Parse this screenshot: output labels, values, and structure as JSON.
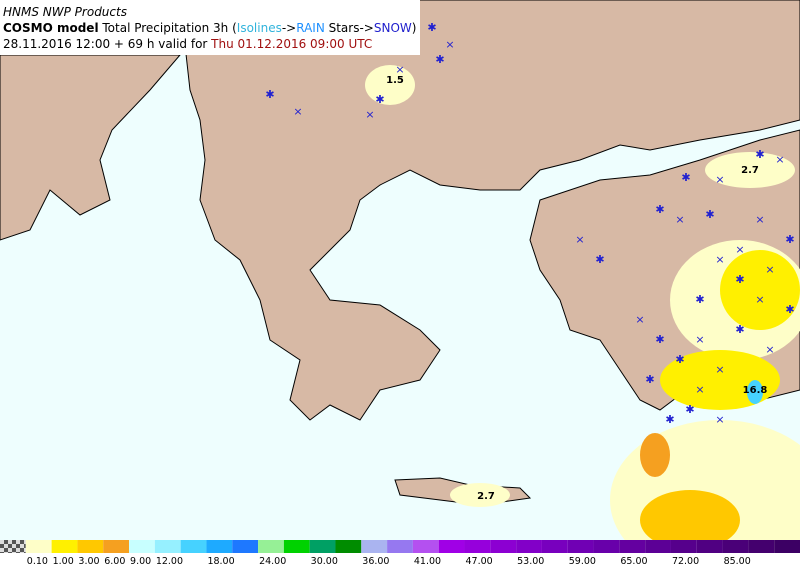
{
  "header": {
    "line1": "HNMS NWP Products",
    "line2": [
      {
        "text": "COSMO model",
        "color": "#000000"
      },
      {
        "text": " Total Precipitation 3h (",
        "color": "#000000"
      },
      {
        "text": "Isolines",
        "color": "#32b4dc"
      },
      {
        "text": "->",
        "color": "#000000"
      },
      {
        "text": "RAIN",
        "color": "#1e90ff"
      },
      {
        "text": " Stars->",
        "color": "#000000"
      },
      {
        "text": "SNOW",
        "color": "#1e1ecc"
      },
      {
        "text": ")",
        "color": "#000000"
      }
    ],
    "line3": [
      {
        "text": "28.11.2016 12:00 + 69 h valid for ",
        "color": "#000000"
      },
      {
        "text": "Thu 01.12.2016 09:00 UTC",
        "color": "#a01010"
      }
    ]
  },
  "map_labels": [
    "1.5",
    "2.7",
    "2.7",
    "16.8"
  ],
  "legend": {
    "colors": [
      "#fefec8",
      "#fff000",
      "#ffc800",
      "#f5a020",
      "#c8ffff",
      "#96f0ff",
      "#46d2ff",
      "#1eaaff",
      "#1e78ff",
      "#96f096",
      "#00d200",
      "#00a064",
      "#008c00",
      "#aab4f0",
      "#9678f0",
      "#b450f0",
      "#a000e6",
      "#9600dc",
      "#8c00d2",
      "#8200c8",
      "#7800be",
      "#7000b4",
      "#6800aa",
      "#6400a0",
      "#5c0096",
      "#56008c",
      "#500082",
      "#4a0078",
      "#44006e",
      "#3c0064"
    ],
    "labels": [
      "0.10",
      "1.00",
      "3.00",
      "6.00",
      "9.00",
      "12.00",
      null,
      "18.00",
      null,
      "24.00",
      null,
      "30.00",
      null,
      "36.00",
      null,
      "41.00",
      null,
      "47.00",
      null,
      "53.00",
      null,
      "59.00",
      null,
      "65.00",
      null,
      "72.00",
      null,
      "85.00",
      null,
      null
    ]
  }
}
